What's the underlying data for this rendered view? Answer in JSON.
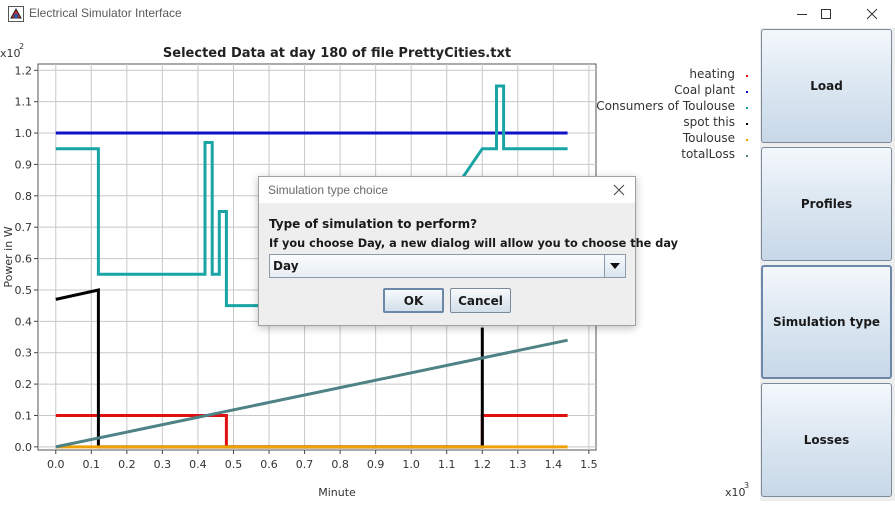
{
  "window": {
    "title": "Electrical Simulator Interface",
    "controls": [
      "minimize-icon",
      "maximize-icon",
      "close-icon"
    ]
  },
  "side_buttons": [
    {
      "label": "Load"
    },
    {
      "label": "Profiles"
    },
    {
      "label": "Simulation type"
    },
    {
      "label": "Losses"
    }
  ],
  "dialog": {
    "title": "Simulation type choice",
    "question": "Type of simulation to perform?",
    "hint": "If you choose Day, a new dialog will allow you to choose the day",
    "select_value": "Day",
    "ok_label": "OK",
    "cancel_label": "Cancel"
  },
  "chart_data": {
    "type": "line",
    "title": "Selected Data at day 180 of file PrettyCities.txt",
    "xlabel": "Minute",
    "ylabel": "Power in W",
    "x_scale_label": "x10",
    "x_scale_exp": "3",
    "y_scale_label": "x10",
    "y_scale_exp": "2",
    "xlim": [
      -0.05,
      1.52
    ],
    "ylim": [
      -0.01,
      1.22
    ],
    "x_ticks": [
      "0.0",
      "0.1",
      "0.2",
      "0.3",
      "0.4",
      "0.5",
      "0.6",
      "0.7",
      "0.8",
      "0.9",
      "1.0",
      "1.1",
      "1.2",
      "1.3",
      "1.4",
      "1.5"
    ],
    "y_ticks": [
      "0.0",
      "0.1",
      "0.2",
      "0.3",
      "0.4",
      "0.5",
      "0.6",
      "0.7",
      "0.8",
      "0.9",
      "1.0",
      "1.1",
      "1.2"
    ],
    "legend_position": "top-right",
    "grid": true,
    "series": [
      {
        "name": "heating",
        "color": "#e01010",
        "x": [
          0,
          0.48,
          0.48,
          1.2,
          1.2,
          1.44
        ],
        "y": [
          0.1,
          0.1,
          0.0,
          0.0,
          0.1,
          0.1
        ]
      },
      {
        "name": "Coal plant",
        "color": "#1010c8",
        "x": [
          0,
          1.44
        ],
        "y": [
          1.0,
          1.0
        ]
      },
      {
        "name": "Consumers of Toulouse",
        "color": "#19a5a5",
        "x": [
          0,
          0.12,
          0.12,
          0.42,
          0.42,
          0.44,
          0.44,
          0.46,
          0.46,
          0.48,
          0.48,
          0.9,
          1.2,
          1.2,
          1.24,
          1.24,
          1.26,
          1.26,
          1.44
        ],
        "y": [
          0.95,
          0.95,
          0.55,
          0.55,
          0.97,
          0.97,
          0.55,
          0.55,
          0.75,
          0.75,
          0.45,
          0.45,
          0.95,
          0.95,
          0.95,
          1.15,
          1.15,
          0.95,
          0.95
        ]
      },
      {
        "name": "spot this",
        "color": "#000000",
        "x": [
          0,
          0.12,
          0.12,
          1.2,
          1.2
        ],
        "y": [
          0.47,
          0.5,
          0.0,
          0.0,
          0.38
        ]
      },
      {
        "name": "Toulouse",
        "color": "#f0a000",
        "x": [
          0,
          1.44
        ],
        "y": [
          0.0,
          0.0
        ]
      },
      {
        "name": "totalLoss",
        "color": "#4f8285",
        "x": [
          0,
          1.44
        ],
        "y": [
          0.0,
          0.34
        ]
      }
    ]
  }
}
